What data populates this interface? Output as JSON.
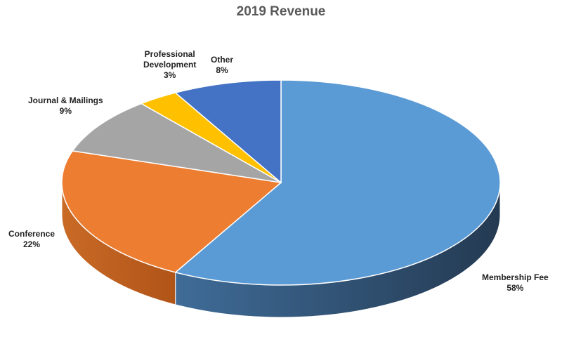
{
  "chart_data": {
    "type": "pie",
    "title": "2019 Revenue",
    "style": "3d",
    "slices": [
      {
        "name": "Membership Fee",
        "value": 58,
        "label": "58%",
        "name_lines": [
          "Membership Fee"
        ],
        "color": "#5B9BD5",
        "side_color": "#2E4F6E"
      },
      {
        "name": "Conference",
        "value": 22,
        "label": "22%",
        "name_lines": [
          "Conference"
        ],
        "color": "#ED7D31",
        "side_color": "#B85A1C"
      },
      {
        "name": "Journal & Mailings",
        "value": 9,
        "label": "9%",
        "name_lines": [
          "Journal & Mailings"
        ],
        "color": "#A5A5A5",
        "side_color": "#7A7A7A"
      },
      {
        "name": "Professional Development",
        "value": 3,
        "label": "3%",
        "name_lines": [
          "Professional",
          "Development"
        ],
        "color": "#FFC000",
        "side_color": "#C49400"
      },
      {
        "name": "Other",
        "value": 8,
        "label": "8%",
        "name_lines": [
          "Other"
        ],
        "color": "#4472C4",
        "side_color": "#2E4F8C"
      }
    ],
    "legend": "none"
  }
}
